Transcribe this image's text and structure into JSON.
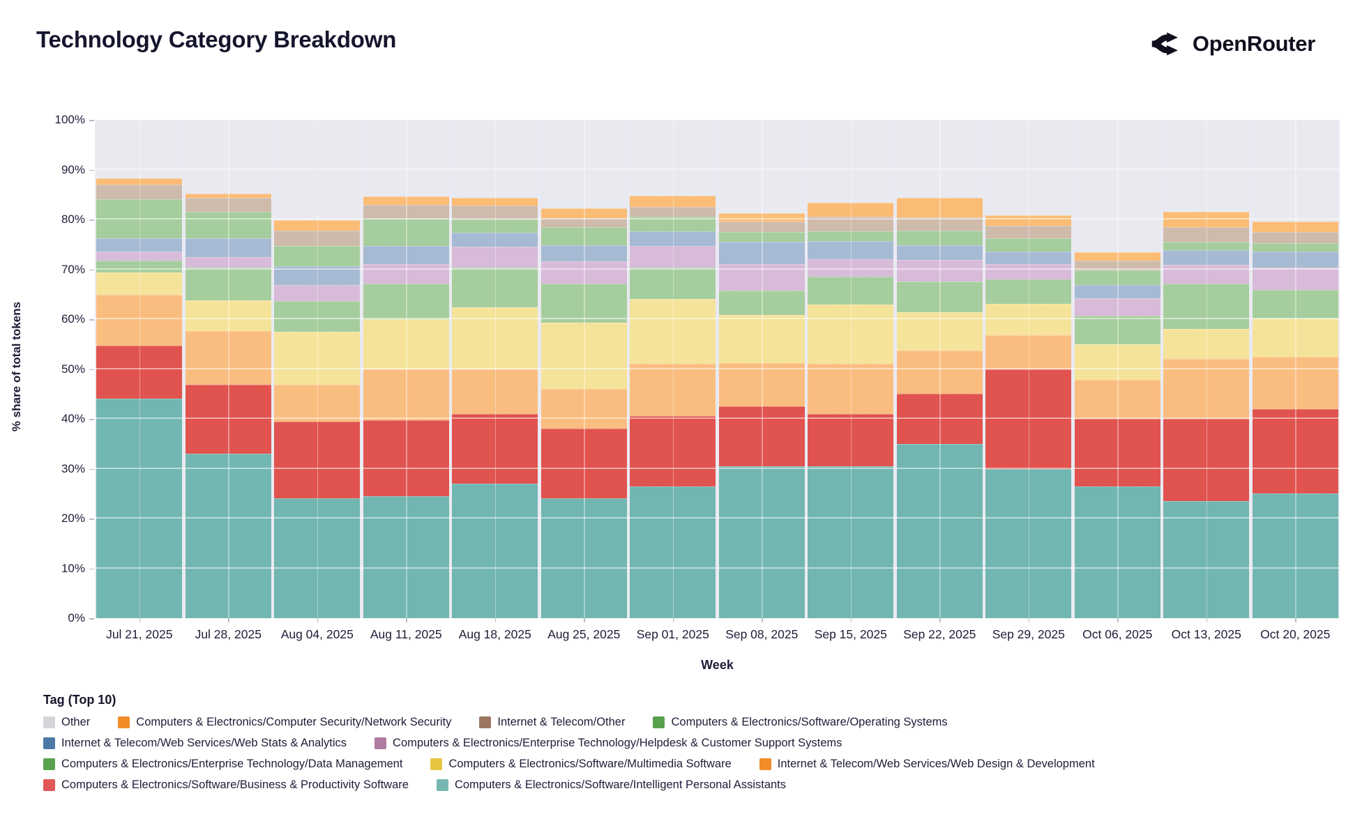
{
  "header": {
    "title": "Technology Category Breakdown",
    "brand": "OpenRouter"
  },
  "chart_data": {
    "type": "bar",
    "stacked": true,
    "title": "Technology Category Breakdown",
    "xlabel": "Week",
    "ylabel": "% share of total tokens",
    "ylim": [
      0,
      100
    ],
    "grid": true,
    "y_ticks": [
      0,
      10,
      20,
      30,
      40,
      50,
      60,
      70,
      80,
      90,
      100
    ],
    "y_tick_suffix": "%",
    "categories": [
      "Jul 21, 2025",
      "Jul 28, 2025",
      "Aug 04, 2025",
      "Aug 11, 2025",
      "Aug 18, 2025",
      "Aug 25, 2025",
      "Sep 01, 2025",
      "Sep 08, 2025",
      "Sep 15, 2025",
      "Sep 22, 2025",
      "Sep 29, 2025",
      "Oct 06, 2025",
      "Oct 13, 2025",
      "Oct 20, 2025"
    ],
    "series": [
      {
        "name": "Computers & Electronics/Software/Intelligent Personal Assistants",
        "bar_color": "#72b6b1",
        "legend_color": "#76b7b2",
        "pattern": "none",
        "values": [
          44.1,
          33.0,
          24.0,
          24.5,
          27.0,
          24.0,
          26.5,
          30.5,
          30.5,
          35.0,
          30.0,
          26.5,
          23.5,
          25.0
        ]
      },
      {
        "name": "Computers & Electronics/Software/Business & Productivity Software",
        "bar_color": "#e0534f",
        "legend_color": "#e15759",
        "pattern": "none",
        "values": [
          10.6,
          13.9,
          15.4,
          15.2,
          14.0,
          14.0,
          14.0,
          12.0,
          10.5,
          10.0,
          19.9,
          13.5,
          16.5,
          17.0
        ]
      },
      {
        "name": "Internet & Telecom/Web Services/Web Design & Development",
        "bar_color": "#fabd80",
        "legend_color": "#f28c28",
        "pattern": "none",
        "values": [
          10.2,
          10.7,
          7.5,
          10.3,
          9.0,
          8.0,
          10.6,
          8.7,
          10.0,
          8.7,
          6.9,
          7.9,
          12.1,
          10.5
        ]
      },
      {
        "name": "Computers & Electronics/Software/Multimedia Software",
        "bar_color": "#f5e399",
        "legend_color": "#e7c63f",
        "pattern": "none",
        "values": [
          4.5,
          6.2,
          10.6,
          10.0,
          12.4,
          13.3,
          13.0,
          9.7,
          11.9,
          7.7,
          6.3,
          7.0,
          6.0,
          7.6
        ]
      },
      {
        "name": "Computers & Electronics/Enterprise Technology/Data Management",
        "bar_color": "#a6cd9d",
        "legend_color": "#59a14f",
        "pattern": "none",
        "values": [
          2.4,
          6.5,
          6.2,
          7.2,
          7.9,
          7.9,
          6.2,
          4.9,
          5.6,
          6.2,
          4.9,
          5.8,
          9.1,
          5.8
        ]
      },
      {
        "name": "Computers & Electronics/Enterprise Technology/Helpdesk & Customer Support Systems",
        "bar_color": "#d8bbd8",
        "legend_color": "#b07aa1",
        "pattern": "dots",
        "values": [
          1.8,
          2.2,
          3.1,
          3.8,
          4.3,
          4.4,
          4.4,
          5.2,
          3.6,
          4.3,
          3.1,
          3.5,
          3.7,
          4.4
        ]
      },
      {
        "name": "Internet & Telecom/Web Services/Web Stats & Analytics",
        "bar_color": "#a6bad4",
        "legend_color": "#4e79a7",
        "pattern": "none",
        "values": [
          2.7,
          3.8,
          3.9,
          3.7,
          2.7,
          3.3,
          2.9,
          4.6,
          3.6,
          2.9,
          2.5,
          2.7,
          3.0,
          3.3
        ]
      },
      {
        "name": "Computers & Electronics/Software/Operating Systems",
        "bar_color": "#a6cd9d",
        "legend_color": "#59a14f",
        "pattern": "none",
        "values": [
          7.7,
          5.3,
          4.0,
          5.5,
          2.7,
          3.5,
          3.0,
          1.9,
          1.9,
          3.0,
          2.6,
          2.9,
          1.6,
          1.6
        ]
      },
      {
        "name": "Internet & Telecom/Other",
        "bar_color": "#cfbbac",
        "legend_color": "#9d7660",
        "pattern": "dots-soft",
        "values": [
          3.0,
          2.8,
          3.1,
          2.8,
          2.8,
          1.9,
          1.9,
          2.1,
          3.0,
          2.6,
          2.6,
          1.9,
          3.0,
          2.3
        ]
      },
      {
        "name": "Computers & Electronics/Computer Security/Network Security",
        "bar_color": "#fbbc76",
        "legend_color": "#f28c28",
        "pattern": "none",
        "values": [
          1.3,
          0.8,
          2.0,
          1.6,
          1.6,
          2.0,
          2.2,
          1.7,
          2.7,
          4.0,
          2.0,
          1.7,
          3.0,
          2.1
        ]
      },
      {
        "name": "Other",
        "bar_color": "#e9e9f0",
        "legend_color": "#d6d6da",
        "pattern": "none",
        "values": [
          11.7,
          14.8,
          20.2,
          15.4,
          15.6,
          17.7,
          15.3,
          18.7,
          16.7,
          15.6,
          19.2,
          26.6,
          18.5,
          20.4
        ]
      }
    ],
    "legend_position": "bottom"
  },
  "legend": {
    "title": "Tag (Top 10)",
    "rows": [
      [
        "Other",
        "Computers & Electronics/Computer Security/Network Security",
        "Internet & Telecom/Other",
        "Computers & Electronics/Software/Operating Systems"
      ],
      [
        "Internet & Telecom/Web Services/Web Stats & Analytics",
        "Computers & Electronics/Enterprise Technology/Helpdesk & Customer Support Systems"
      ],
      [
        "Computers & Electronics/Enterprise Technology/Data Management",
        "Computers & Electronics/Software/Multimedia Software",
        "Internet & Telecom/Web Services/Web Design & Development"
      ],
      [
        "Computers & Electronics/Software/Business & Productivity Software",
        "Computers & Electronics/Software/Intelligent Personal Assistants"
      ]
    ]
  }
}
